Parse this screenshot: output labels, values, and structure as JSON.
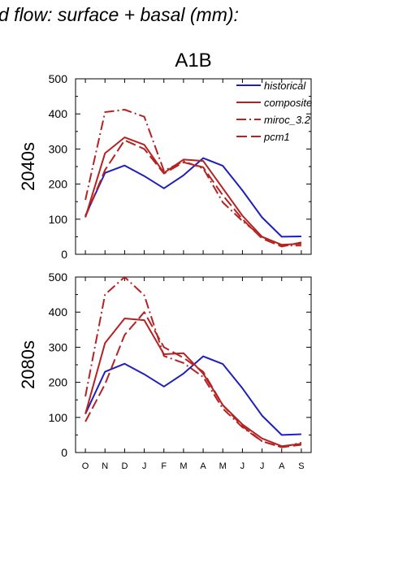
{
  "header": {
    "title": "d flow: surface + basal (mm):",
    "subtitle": "A1B"
  },
  "chart_data": [
    {
      "type": "line",
      "panel_label": "2040s",
      "x": [
        "O",
        "N",
        "D",
        "J",
        "F",
        "M",
        "A",
        "M",
        "J",
        "J",
        "A",
        "S"
      ],
      "ylim": [
        0,
        500
      ],
      "yticks": [
        0,
        100,
        200,
        300,
        400,
        500
      ],
      "grid": false,
      "legend_position": "top-right",
      "series": [
        {
          "name": "historical",
          "color": "#1f1fbf",
          "dash": "solid",
          "values": [
            110,
            232,
            253,
            223,
            188,
            225,
            274,
            252,
            182,
            105,
            50,
            51
          ]
        },
        {
          "name": "composite",
          "color": "#b52222",
          "dash": "solid",
          "values": [
            105,
            288,
            333,
            312,
            232,
            270,
            266,
            188,
            110,
            50,
            27,
            30
          ]
        },
        {
          "name": "miroc_3.2",
          "color": "#b52222",
          "dash": "dashdot",
          "values": [
            155,
            405,
            412,
            392,
            238,
            265,
            245,
            148,
            95,
            50,
            25,
            25
          ]
        },
        {
          "name": "pcm1",
          "color": "#b52222",
          "dash": "dashed",
          "values": [
            107,
            240,
            325,
            300,
            230,
            262,
            248,
            168,
            100,
            45,
            22,
            34
          ]
        }
      ]
    },
    {
      "type": "line",
      "panel_label": "2080s",
      "x": [
        "O",
        "N",
        "D",
        "J",
        "F",
        "M",
        "A",
        "M",
        "J",
        "J",
        "A",
        "S"
      ],
      "ylim": [
        0,
        500
      ],
      "yticks": [
        0,
        100,
        200,
        300,
        400,
        500
      ],
      "grid": false,
      "series": [
        {
          "name": "historical",
          "color": "#1f1fbf",
          "dash": "solid",
          "values": [
            110,
            230,
            253,
            223,
            188,
            225,
            274,
            252,
            183,
            105,
            50,
            52
          ]
        },
        {
          "name": "composite",
          "color": "#b52222",
          "dash": "solid",
          "values": [
            110,
            312,
            382,
            377,
            280,
            283,
            225,
            135,
            80,
            40,
            18,
            25
          ]
        },
        {
          "name": "miroc_3.2",
          "color": "#b52222",
          "dash": "dashdot",
          "values": [
            160,
            450,
            500,
            448,
            275,
            255,
            215,
            125,
            72,
            32,
            15,
            28
          ]
        },
        {
          "name": "pcm1",
          "color": "#b52222",
          "dash": "dashed",
          "values": [
            88,
            195,
            335,
            400,
            300,
            270,
            230,
            135,
            75,
            32,
            15,
            22
          ]
        }
      ]
    }
  ]
}
